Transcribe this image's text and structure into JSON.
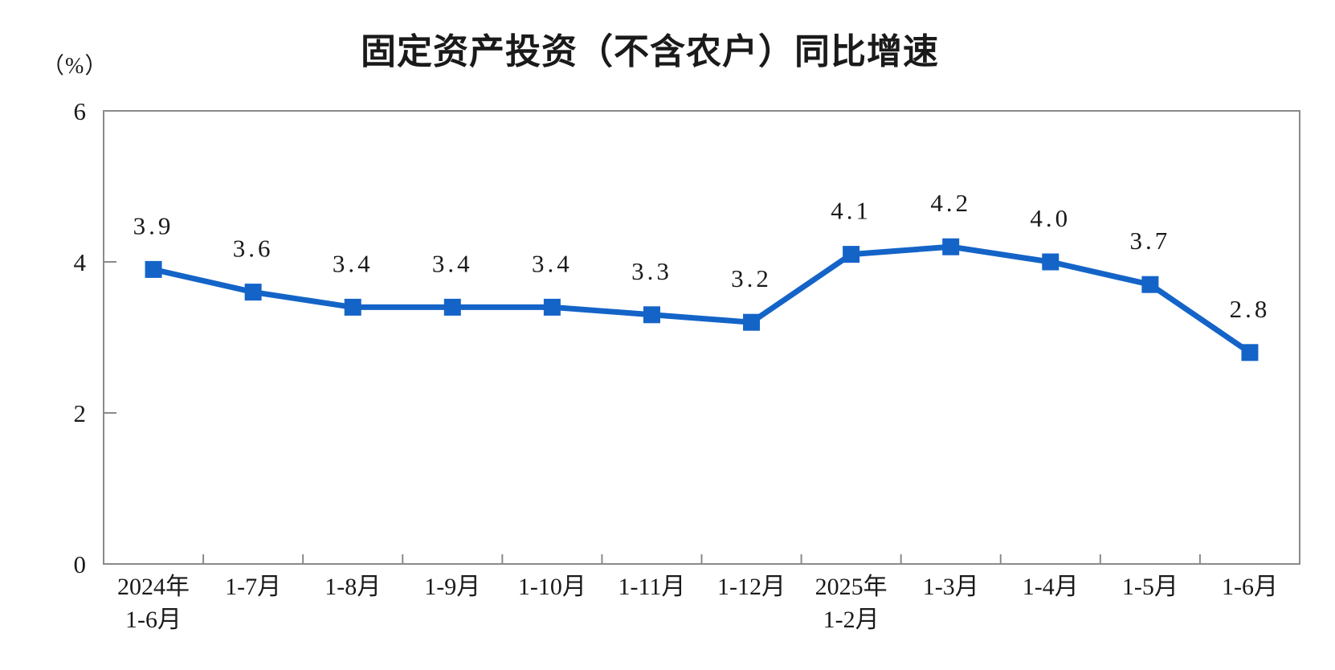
{
  "page": {
    "background": "#ffffff"
  },
  "chart_data": {
    "type": "line",
    "title": "固定资产投资（不含农户）同比增速",
    "ylabel": "（%）",
    "xlabel": "",
    "categories": [
      "2024年\n1-6月",
      "1-7月",
      "1-8月",
      "1-9月",
      "1-10月",
      "1-11月",
      "1-12月",
      "2025年\n1-2月",
      "1-3月",
      "1-4月",
      "1-5月",
      "1-6月"
    ],
    "values": [
      3.9,
      3.6,
      3.4,
      3.4,
      3.4,
      3.3,
      3.2,
      4.1,
      4.2,
      4.0,
      3.7,
      2.8
    ],
    "data_labels": [
      "3.9",
      "3.6",
      "3.4",
      "3.4",
      "3.4",
      "3.3",
      "3.2",
      "4.1",
      "4.2",
      "4.0",
      "3.7",
      "2.8"
    ],
    "ylim": [
      0,
      6
    ],
    "yticks": [
      0,
      2,
      4,
      6
    ],
    "grid": false,
    "legend": "none",
    "marker_shape": "square",
    "line_color": "#1464C8",
    "axis_color": "#8a8a8a",
    "text_color": "#1a1a1a"
  }
}
